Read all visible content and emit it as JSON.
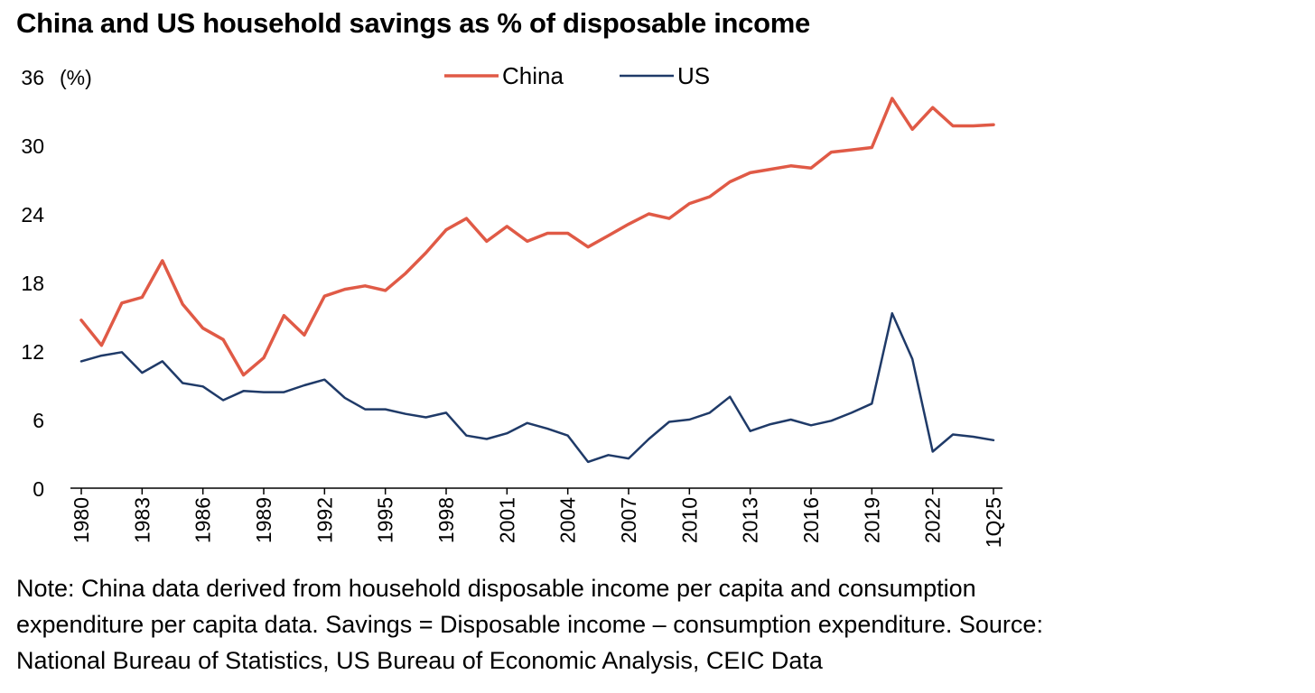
{
  "title": "China and US household savings as % of disposable income",
  "note_lines": [
    "Note: China data derived from household disposable income per capita and consumption",
    "expenditure per capita data. Savings = Disposable income – consumption expenditure. Source:",
    "National Bureau of Statistics, US Bureau of Economic Analysis, CEIC Data"
  ],
  "chart_data": {
    "type": "line",
    "title": "China and US household savings as % of disposable income",
    "ylabel": "(%)",
    "xlabel": "",
    "ylim": [
      0,
      36
    ],
    "yticks": [
      0,
      6,
      12,
      18,
      24,
      30,
      36
    ],
    "xtick_labels": [
      "1980",
      "1983",
      "1986",
      "1989",
      "1992",
      "1995",
      "1998",
      "2001",
      "2004",
      "2007",
      "2010",
      "2013",
      "2016",
      "2019",
      "2022",
      "1Q25"
    ],
    "x": [
      "1980",
      "1981",
      "1982",
      "1983",
      "1984",
      "1985",
      "1986",
      "1987",
      "1988",
      "1989",
      "1990",
      "1991",
      "1992",
      "1993",
      "1994",
      "1995",
      "1996",
      "1997",
      "1998",
      "1999",
      "2000",
      "2001",
      "2002",
      "2003",
      "2004",
      "2005",
      "2006",
      "2007",
      "2008",
      "2009",
      "2010",
      "2011",
      "2012",
      "2013",
      "2014",
      "2015",
      "2016",
      "2017",
      "2018",
      "2019",
      "2020",
      "2021",
      "2022",
      "2023",
      "2024",
      "1Q25"
    ],
    "legend_position": "top-center",
    "grid": false,
    "series": [
      {
        "name": "China",
        "color": "#e05a46",
        "values": [
          14.7,
          12.5,
          16.2,
          16.7,
          19.9,
          16.1,
          14.0,
          13.0,
          9.9,
          11.4,
          15.1,
          13.4,
          16.8,
          17.4,
          17.7,
          17.3,
          18.8,
          20.6,
          22.6,
          23.6,
          21.6,
          22.9,
          21.6,
          22.3,
          22.3,
          21.1,
          22.1,
          23.1,
          24.0,
          23.6,
          24.9,
          25.5,
          26.8,
          27.6,
          27.9,
          28.2,
          28.0,
          29.4,
          29.6,
          29.8,
          34.1,
          31.4,
          33.3,
          31.7,
          31.7,
          31.8
        ]
      },
      {
        "name": "US",
        "color": "#1f3a68",
        "values": [
          11.1,
          11.6,
          11.9,
          10.1,
          11.1,
          9.2,
          8.9,
          7.7,
          8.5,
          8.4,
          8.4,
          9.0,
          9.5,
          7.9,
          6.9,
          6.9,
          6.5,
          6.2,
          6.6,
          4.6,
          4.3,
          4.8,
          5.7,
          5.2,
          4.6,
          2.3,
          2.9,
          2.6,
          4.3,
          5.8,
          6.0,
          6.6,
          8.0,
          5.0,
          5.6,
          6.0,
          5.5,
          5.9,
          6.6,
          7.4,
          15.3,
          11.3,
          3.2,
          4.7,
          4.5,
          4.2
        ]
      }
    ]
  }
}
